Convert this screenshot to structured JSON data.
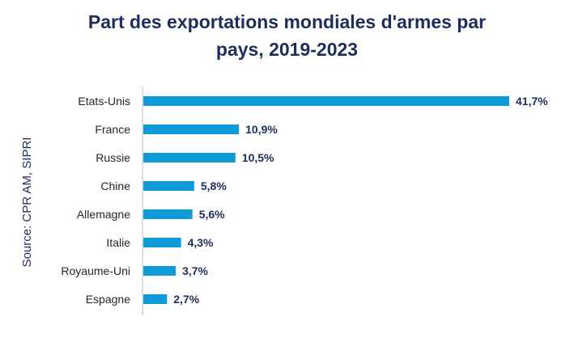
{
  "chart_data": {
    "type": "bar",
    "orientation": "horizontal",
    "title_lines": [
      "Part des exportations mondiales d'armes par",
      "pays, 2019-2023"
    ],
    "categories": [
      "Etats-Unis",
      "France",
      "Russie",
      "Chine",
      "Allemagne",
      "Italie",
      "Royaume-Uni",
      "Espagne"
    ],
    "values": [
      41.7,
      10.9,
      10.5,
      5.8,
      5.6,
      4.3,
      3.7,
      2.7
    ],
    "value_labels": [
      "41,7%",
      "10,9%",
      "10,5%",
      "5,8%",
      "5,6%",
      "4,3%",
      "3,7%",
      "2,7%"
    ],
    "xlim": [
      0,
      41.7
    ],
    "source": "Source: CPR AM, SIPRI",
    "bar_color": "#0f9bd7",
    "label_color": "#1f2d5a"
  }
}
